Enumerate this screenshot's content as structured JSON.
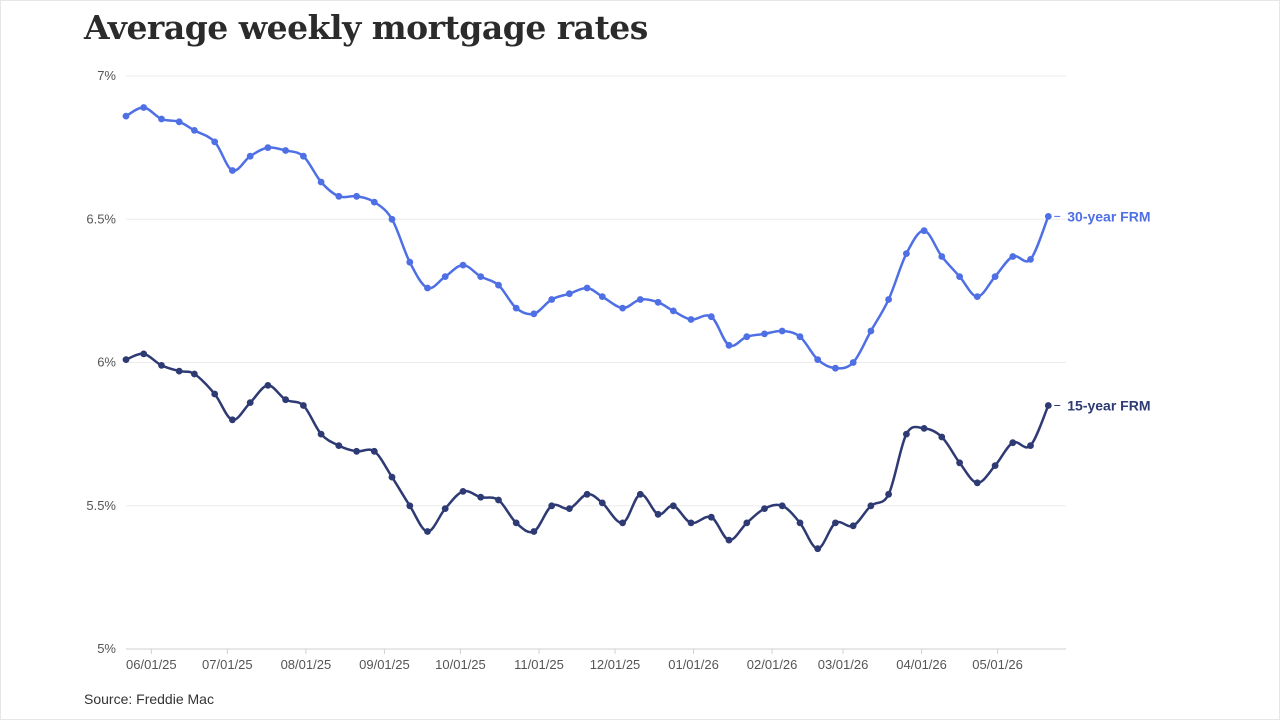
{
  "title": "Average weekly mortgage rates",
  "source": "Source: Freddie Mac",
  "colors": {
    "frm30": "#4f6fe5",
    "frm15": "#2e3a73",
    "grid": "#ebebeb",
    "axis": "#d0d0d0"
  },
  "chart_data": {
    "type": "line",
    "title": "Average weekly mortgage rates",
    "xlabel": "",
    "ylabel": "",
    "ylim": [
      5,
      7
    ],
    "xlim": [
      "2025-05-22",
      "2026-05-28"
    ],
    "grid": true,
    "legend": "inline labels at line ends",
    "y_ticks": [
      {
        "value": 7,
        "label": "7%"
      },
      {
        "value": 6.5,
        "label": "6.5%"
      },
      {
        "value": 6,
        "label": "6%"
      },
      {
        "value": 5.5,
        "label": "5.5%"
      },
      {
        "value": 5,
        "label": "5%"
      }
    ],
    "x_ticks": [
      {
        "date": "2025-06-01",
        "label": "06/01/25"
      },
      {
        "date": "2025-07-01",
        "label": "07/01/25"
      },
      {
        "date": "2025-08-01",
        "label": "08/01/25"
      },
      {
        "date": "2025-09-01",
        "label": "09/01/25"
      },
      {
        "date": "2025-10-01",
        "label": "10/01/25"
      },
      {
        "date": "2025-11-01",
        "label": "11/01/25"
      },
      {
        "date": "2025-12-01",
        "label": "12/01/25"
      },
      {
        "date": "2026-01-01",
        "label": "01/01/26"
      },
      {
        "date": "2026-02-01",
        "label": "02/01/26"
      },
      {
        "date": "2026-03-01",
        "label": "03/01/26"
      },
      {
        "date": "2026-04-01",
        "label": "04/01/26"
      },
      {
        "date": "2026-05-01",
        "label": "05/01/26"
      }
    ],
    "x": [
      "2025-05-22",
      "2025-05-29",
      "2025-06-05",
      "2025-06-12",
      "2025-06-18",
      "2025-06-26",
      "2025-07-03",
      "2025-07-10",
      "2025-07-17",
      "2025-07-24",
      "2025-07-31",
      "2025-08-07",
      "2025-08-14",
      "2025-08-21",
      "2025-08-28",
      "2025-09-04",
      "2025-09-11",
      "2025-09-18",
      "2025-09-25",
      "2025-10-02",
      "2025-10-09",
      "2025-10-16",
      "2025-10-23",
      "2025-10-30",
      "2025-11-06",
      "2025-11-13",
      "2025-11-20",
      "2025-11-26",
      "2025-12-04",
      "2025-12-11",
      "2025-12-18",
      "2025-12-24",
      "2025-12-31",
      "2026-01-08",
      "2026-01-15",
      "2026-01-22",
      "2026-01-29",
      "2026-02-05",
      "2026-02-12",
      "2026-02-19",
      "2026-02-26",
      "2026-03-05",
      "2026-03-12",
      "2026-03-19",
      "2026-03-26",
      "2026-04-02",
      "2026-04-09",
      "2026-04-16",
      "2026-04-23",
      "2026-04-30",
      "2026-05-07",
      "2026-05-14",
      "2026-05-21"
    ],
    "series": [
      {
        "name": "30-year FRM",
        "color": "#4f6fe5",
        "values": [
          6.86,
          6.89,
          6.85,
          6.84,
          6.81,
          6.77,
          6.67,
          6.72,
          6.75,
          6.74,
          6.72,
          6.63,
          6.58,
          6.58,
          6.56,
          6.5,
          6.35,
          6.26,
          6.3,
          6.34,
          6.3,
          6.27,
          6.19,
          6.17,
          6.22,
          6.24,
          6.26,
          6.23,
          6.19,
          6.22,
          6.21,
          6.18,
          6.15,
          6.16,
          6.06,
          6.09,
          6.1,
          6.11,
          6.09,
          6.01,
          5.98,
          6.0,
          6.11,
          6.22,
          6.38,
          6.46,
          6.37,
          6.3,
          6.23,
          6.3,
          6.37,
          6.36,
          6.51
        ]
      },
      {
        "name": "15-year FRM",
        "color": "#2e3a73",
        "values": [
          6.01,
          6.03,
          5.99,
          5.97,
          5.96,
          5.89,
          5.8,
          5.86,
          5.92,
          5.87,
          5.85,
          5.75,
          5.71,
          5.69,
          5.69,
          5.6,
          5.5,
          5.41,
          5.49,
          5.55,
          5.53,
          5.52,
          5.44,
          5.41,
          5.5,
          5.49,
          5.54,
          5.51,
          5.44,
          5.54,
          5.47,
          5.5,
          5.44,
          5.46,
          5.38,
          5.44,
          5.49,
          5.5,
          5.44,
          5.35,
          5.44,
          5.43,
          5.5,
          5.54,
          5.75,
          5.77,
          5.74,
          5.65,
          5.58,
          5.64,
          5.72,
          5.71,
          5.85
        ]
      }
    ]
  }
}
